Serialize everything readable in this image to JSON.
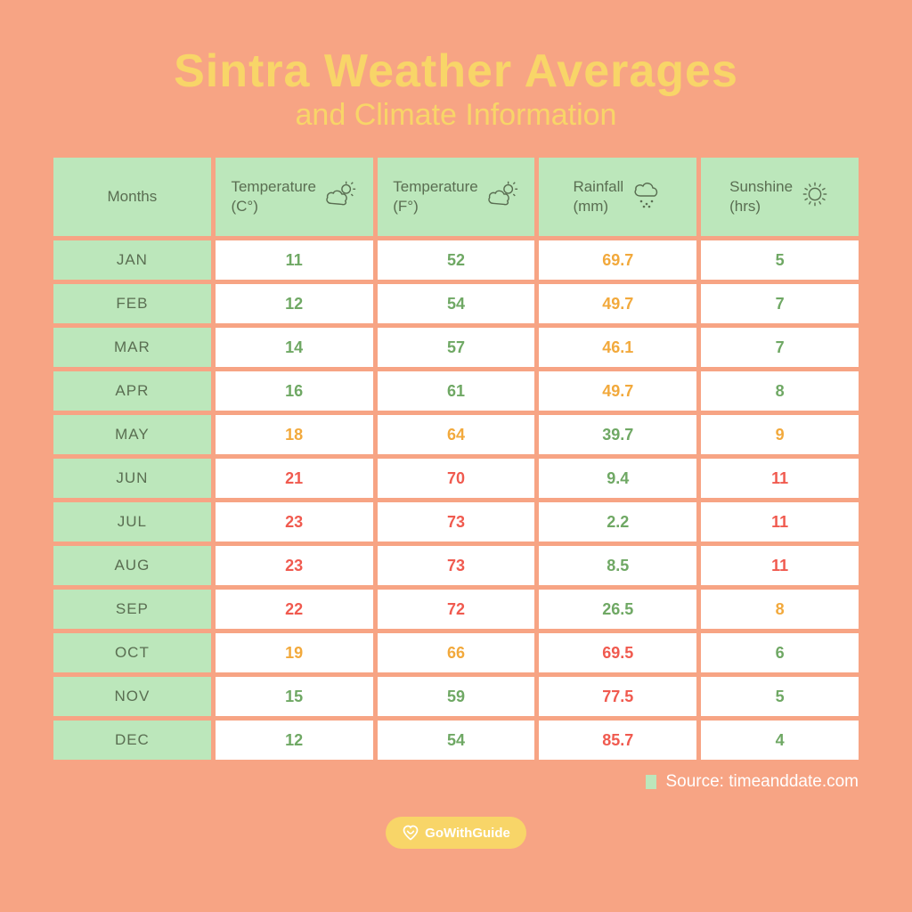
{
  "colors": {
    "background": "#f7a484",
    "title": "#f8d568",
    "header_bg": "#bce7bb",
    "header_text": "#5a6e52",
    "month_bg": "#bce7bb",
    "month_text": "#5a6e52",
    "data_bg": "#ffffff",
    "value_green": "#6fa864",
    "value_orange": "#f2a93c",
    "value_red": "#f05a4f",
    "source_text": "#ffffff",
    "source_box": "#bce7bb",
    "logo_bg": "#f8d568",
    "logo_text": "#ffffff",
    "icon_stroke": "#5a6e52"
  },
  "title": {
    "main": "Sintra Weather Averages",
    "sub": "and Climate Information"
  },
  "headers": [
    {
      "label": "Months",
      "icon": "none"
    },
    {
      "label": "Temperature (C°)",
      "icon": "cloud-sun"
    },
    {
      "label": "Temperature (F°)",
      "icon": "cloud-sun"
    },
    {
      "label": "Rainfall (mm)",
      "icon": "rain"
    },
    {
      "label": "Sunshine (hrs)",
      "icon": "sun"
    }
  ],
  "rows": [
    {
      "month": "JAN",
      "cells": [
        {
          "v": "11",
          "c": "green"
        },
        {
          "v": "52",
          "c": "green"
        },
        {
          "v": "69.7",
          "c": "orange"
        },
        {
          "v": "5",
          "c": "green"
        }
      ]
    },
    {
      "month": "FEB",
      "cells": [
        {
          "v": "12",
          "c": "green"
        },
        {
          "v": "54",
          "c": "green"
        },
        {
          "v": "49.7",
          "c": "orange"
        },
        {
          "v": "7",
          "c": "green"
        }
      ]
    },
    {
      "month": "MAR",
      "cells": [
        {
          "v": "14",
          "c": "green"
        },
        {
          "v": "57",
          "c": "green"
        },
        {
          "v": "46.1",
          "c": "orange"
        },
        {
          "v": "7",
          "c": "green"
        }
      ]
    },
    {
      "month": "APR",
      "cells": [
        {
          "v": "16",
          "c": "green"
        },
        {
          "v": "61",
          "c": "green"
        },
        {
          "v": "49.7",
          "c": "orange"
        },
        {
          "v": "8",
          "c": "green"
        }
      ]
    },
    {
      "month": "MAY",
      "cells": [
        {
          "v": "18",
          "c": "orange"
        },
        {
          "v": "64",
          "c": "orange"
        },
        {
          "v": "39.7",
          "c": "green"
        },
        {
          "v": "9",
          "c": "orange"
        }
      ]
    },
    {
      "month": "JUN",
      "cells": [
        {
          "v": "21",
          "c": "red"
        },
        {
          "v": "70",
          "c": "red"
        },
        {
          "v": "9.4",
          "c": "green"
        },
        {
          "v": "11",
          "c": "red"
        }
      ]
    },
    {
      "month": "JUL",
      "cells": [
        {
          "v": "23",
          "c": "red"
        },
        {
          "v": "73",
          "c": "red"
        },
        {
          "v": "2.2",
          "c": "green"
        },
        {
          "v": "11",
          "c": "red"
        }
      ]
    },
    {
      "month": "AUG",
      "cells": [
        {
          "v": "23",
          "c": "red"
        },
        {
          "v": "73",
          "c": "red"
        },
        {
          "v": "8.5",
          "c": "green"
        },
        {
          "v": "11",
          "c": "red"
        }
      ]
    },
    {
      "month": "SEP",
      "cells": [
        {
          "v": "22",
          "c": "red"
        },
        {
          "v": "72",
          "c": "red"
        },
        {
          "v": "26.5",
          "c": "green"
        },
        {
          "v": "8",
          "c": "orange"
        }
      ]
    },
    {
      "month": "OCT",
      "cells": [
        {
          "v": "19",
          "c": "orange"
        },
        {
          "v": "66",
          "c": "orange"
        },
        {
          "v": "69.5",
          "c": "red"
        },
        {
          "v": "6",
          "c": "green"
        }
      ]
    },
    {
      "month": "NOV",
      "cells": [
        {
          "v": "15",
          "c": "green"
        },
        {
          "v": "59",
          "c": "green"
        },
        {
          "v": "77.5",
          "c": "red"
        },
        {
          "v": "5",
          "c": "green"
        }
      ]
    },
    {
      "month": "DEC",
      "cells": [
        {
          "v": "12",
          "c": "green"
        },
        {
          "v": "54",
          "c": "green"
        },
        {
          "v": "85.7",
          "c": "red"
        },
        {
          "v": "4",
          "c": "green"
        }
      ]
    }
  ],
  "source": "Source: timeanddate.com",
  "logo": "GoWithGuide"
}
